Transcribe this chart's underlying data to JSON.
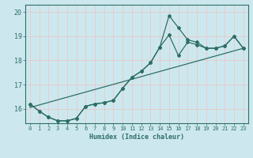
{
  "title": "",
  "xlabel": "Humidex (Indice chaleur)",
  "ylabel": "",
  "bg_color": "#cce8ee",
  "grid_color": "#e8c8c8",
  "line_color": "#2e6e65",
  "xlim": [
    -0.5,
    23.5
  ],
  "ylim": [
    15.4,
    20.3
  ],
  "yticks": [
    16,
    17,
    18,
    19,
    20
  ],
  "xticks": [
    0,
    1,
    2,
    3,
    4,
    5,
    6,
    7,
    8,
    9,
    10,
    11,
    12,
    13,
    14,
    15,
    16,
    17,
    18,
    19,
    20,
    21,
    22,
    23
  ],
  "series1_x": [
    0,
    1,
    2,
    3,
    4,
    5,
    6,
    7,
    8,
    9,
    10,
    11,
    12,
    13,
    14,
    15,
    16,
    17,
    18,
    19,
    20,
    21,
    22,
    23
  ],
  "series1_y": [
    16.2,
    15.9,
    15.65,
    15.5,
    15.5,
    15.6,
    16.1,
    16.2,
    16.25,
    16.35,
    16.85,
    17.3,
    17.55,
    17.9,
    18.55,
    19.85,
    19.35,
    18.85,
    18.75,
    18.5,
    18.5,
    18.6,
    19.0,
    18.5
  ],
  "series2_x": [
    0,
    1,
    2,
    3,
    4,
    5,
    6,
    7,
    8,
    9,
    10,
    11,
    12,
    13,
    14,
    15,
    16,
    17,
    18,
    19,
    20,
    21,
    22,
    23
  ],
  "series2_y": [
    16.2,
    15.9,
    15.65,
    15.5,
    15.5,
    15.6,
    16.1,
    16.2,
    16.25,
    16.35,
    16.85,
    17.3,
    17.55,
    17.9,
    18.55,
    19.05,
    18.2,
    18.75,
    18.65,
    18.5,
    18.5,
    18.6,
    19.0,
    18.5
  ],
  "series3_x": [
    0,
    23
  ],
  "series3_y": [
    16.05,
    18.5
  ],
  "marker": "D",
  "markersize": 2.0,
  "linewidth": 0.9
}
